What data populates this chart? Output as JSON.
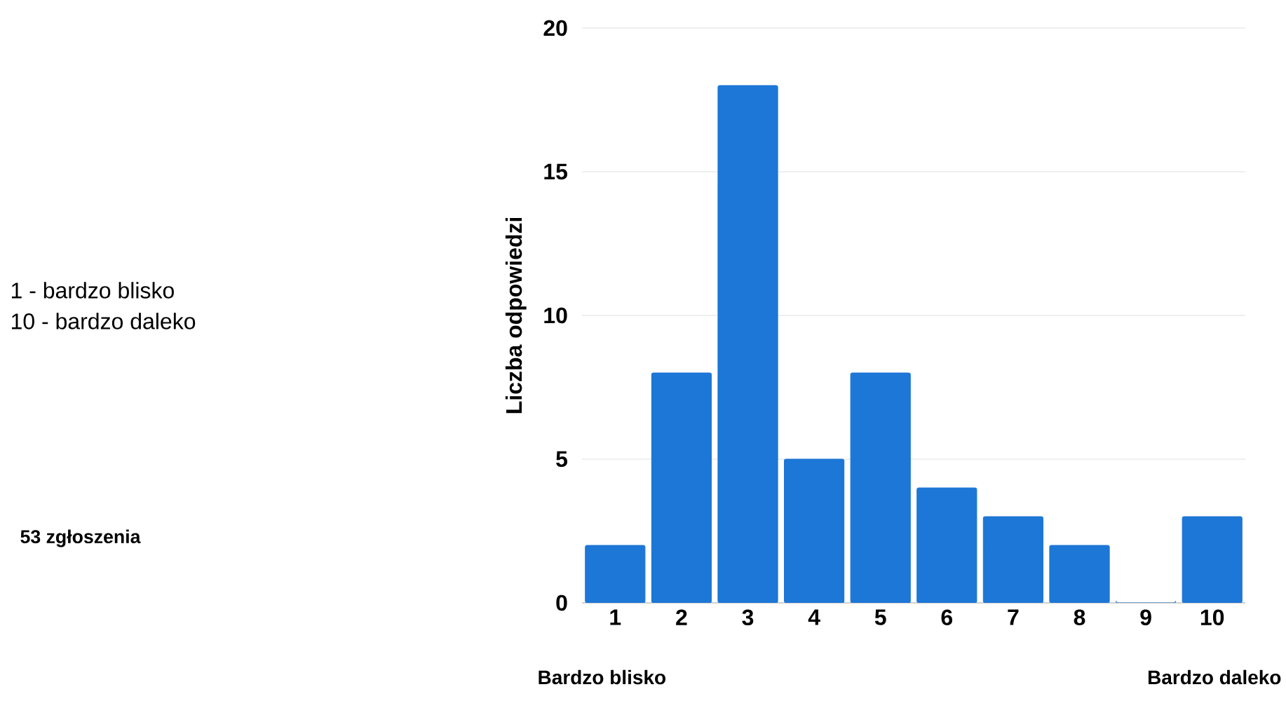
{
  "chart_data": {
    "type": "bar",
    "ylabel": "Liczba odpowiedzi",
    "categories": [
      "1",
      "2",
      "3",
      "4",
      "5",
      "6",
      "7",
      "8",
      "9",
      "10"
    ],
    "values": [
      2,
      8,
      18,
      5,
      8,
      4,
      3,
      2,
      0,
      3
    ],
    "color": "#1c77d6",
    "ylim": [
      0,
      20
    ],
    "yticks": [
      0,
      5,
      10,
      15,
      20
    ],
    "grid": "y",
    "annotations": [
      "1 - bardzo blisko",
      "10 - bardzo daleko",
      "53 zgłoszenia",
      "Bardzo blisko",
      "Bardzo daleko"
    ]
  }
}
